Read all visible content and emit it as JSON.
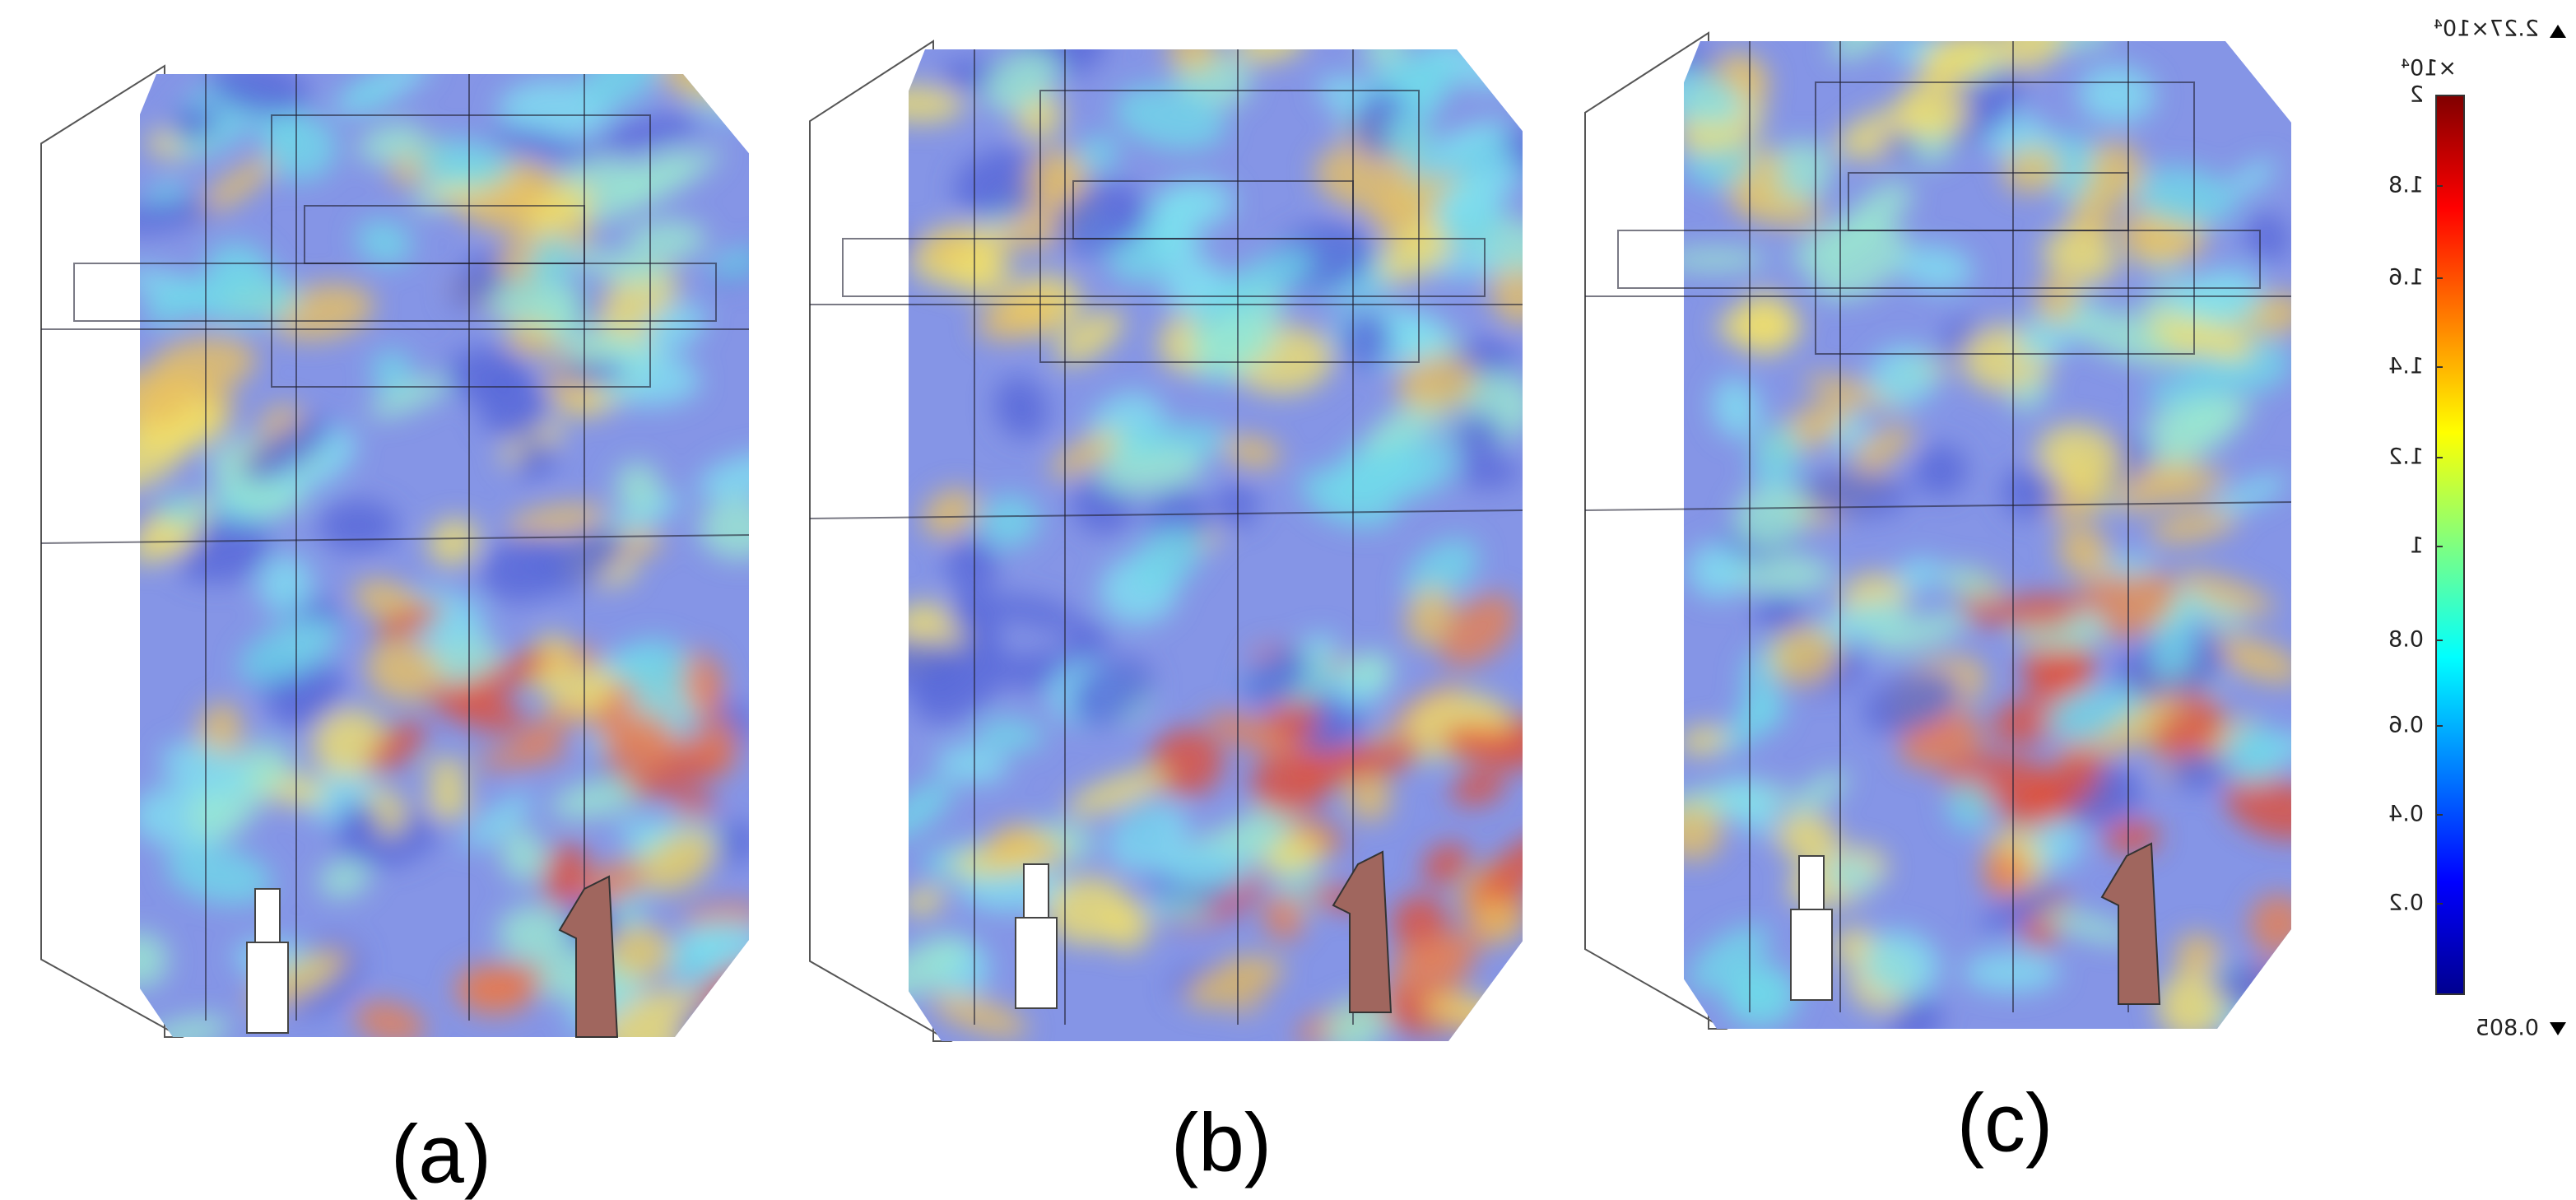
{
  "panels": [
    {
      "label": "(a)"
    },
    {
      "label": "(b)"
    },
    {
      "label": "(c)"
    }
  ],
  "colorbar": {
    "max_label": "2.27×10⁴",
    "exponent": "×10⁴",
    "min_label": "0.805",
    "ticks": [
      "2",
      "1.8",
      "1.6",
      "1.4",
      "1.2",
      "1",
      "0.8",
      "0.6",
      "0.4",
      "0.2"
    ]
  }
}
